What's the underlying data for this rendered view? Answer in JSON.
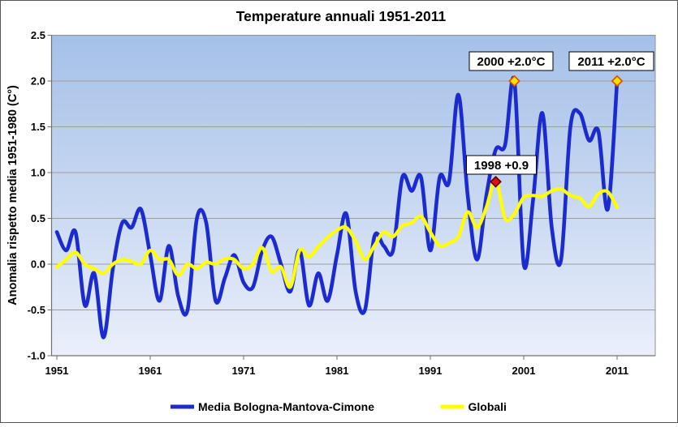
{
  "chart_data": {
    "type": "line",
    "title": "Temperature annuali 1951-2011",
    "ylabel": "Anomalia rispetto media 1951-1980 (C°)",
    "xlabel": "",
    "x_start": 1951,
    "x_end": 2011,
    "x_tick_labels": [
      "1951",
      "1961",
      "1971",
      "1981",
      "1991",
      "2001",
      "2011"
    ],
    "x_tick_years": [
      1951,
      1961,
      1971,
      1981,
      1991,
      2001,
      2011
    ],
    "y_tick_labels": [
      "2.5",
      "2.0",
      "1.5",
      "1.0",
      "0.5",
      "0.0",
      "-0.5",
      "-1.0"
    ],
    "y_tick_values": [
      2.5,
      2.0,
      1.5,
      1.0,
      0.5,
      0.0,
      -0.5,
      -1.0
    ],
    "ylim": [
      -1.0,
      2.5
    ],
    "grid": true,
    "legend_position": "bottom",
    "series": [
      {
        "name": "Media Bologna-Mantova-Cimone",
        "color": "#1b2bd0",
        "stroke_width": 4.6,
        "values": [
          0.35,
          0.15,
          0.35,
          -0.45,
          -0.1,
          -0.8,
          -0.05,
          0.45,
          0.4,
          0.6,
          0.1,
          -0.4,
          0.2,
          -0.35,
          -0.5,
          0.5,
          0.45,
          -0.4,
          -0.15,
          0.1,
          -0.2,
          -0.25,
          0.15,
          0.3,
          0.0,
          -0.3,
          0.15,
          -0.45,
          -0.1,
          -0.4,
          0.1,
          0.55,
          -0.3,
          -0.5,
          0.3,
          0.2,
          0.15,
          0.95,
          0.8,
          0.95,
          0.15,
          0.95,
          0.9,
          1.85,
          0.75,
          0.05,
          0.75,
          1.25,
          1.3,
          2.0,
          0.0,
          0.7,
          1.65,
          0.4,
          0.05,
          1.5,
          1.65,
          1.35,
          1.45,
          0.6,
          2.0
        ]
      },
      {
        "name": "Globali",
        "color": "#ffff00",
        "stroke_width": 4.2,
        "values": [
          -0.03,
          0.05,
          0.13,
          0.0,
          -0.05,
          -0.1,
          0.0,
          0.05,
          0.03,
          0.0,
          0.15,
          0.05,
          0.05,
          -0.12,
          0.0,
          -0.05,
          0.02,
          0.0,
          0.06,
          0.05,
          -0.05,
          0.0,
          0.18,
          -0.08,
          -0.03,
          -0.25,
          0.15,
          0.08,
          0.19,
          0.29,
          0.37,
          0.4,
          0.25,
          0.05,
          0.2,
          0.35,
          0.3,
          0.42,
          0.45,
          0.52,
          0.35,
          0.2,
          0.23,
          0.3,
          0.57,
          0.4,
          0.62,
          0.92,
          0.5,
          0.55,
          0.73,
          0.75,
          0.74,
          0.8,
          0.82,
          0.75,
          0.72,
          0.63,
          0.77,
          0.79,
          0.62
        ]
      }
    ],
    "annotations": [
      {
        "label": "2000 +2.0°C",
        "year": 2000,
        "value": 2.0,
        "marker": "diamond",
        "marker_fill": "#ffe100",
        "marker_stroke": "#e14a00"
      },
      {
        "label": "2011 +2.0°C",
        "year": 2011,
        "value": 2.0,
        "marker": "diamond",
        "marker_fill": "#ffe100",
        "marker_stroke": "#e14a00"
      },
      {
        "label": "1998 +0.9",
        "year": 1998,
        "value": 0.9,
        "marker": "diamond",
        "marker_fill": "#dd1111",
        "marker_stroke": "#5c0000"
      }
    ]
  },
  "colors": {
    "plot_bg_top": "#a5c0e8",
    "plot_bg_bottom": "#eaeffa",
    "gridline": "#9d9d9d",
    "axis": "#707070",
    "plot_border": "#909090",
    "outer_border": "#565656",
    "annotation_bg": "#ffffff",
    "annotation_border": "#000000",
    "text": "#000000"
  }
}
